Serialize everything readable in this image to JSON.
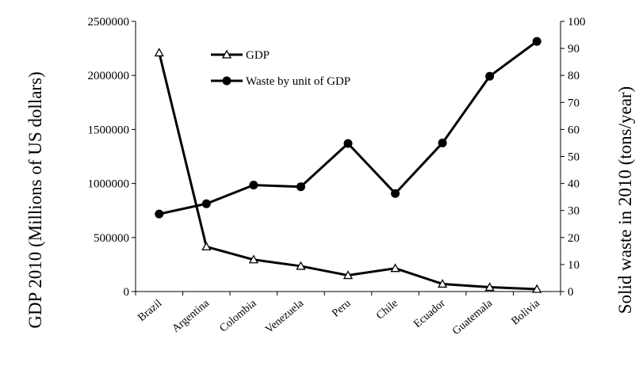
{
  "chart_data": {
    "type": "line",
    "categories": [
      "Brazil",
      "Argentina",
      "Colombia",
      "Venezuela",
      "Peru",
      "Chile",
      "Ecuador",
      "Guatemala",
      "Bolivia"
    ],
    "series": [
      {
        "name": "GDP",
        "axis": "left",
        "marker": "open-triangle",
        "values": [
          2210000,
          415000,
          295000,
          235000,
          150000,
          215000,
          70000,
          40000,
          22000
        ]
      },
      {
        "name": "Waste by unit of GDP",
        "axis": "right",
        "marker": "filled-circle",
        "values": [
          28.7,
          32.5,
          39.4,
          38.8,
          54.8,
          36.3,
          55.0,
          79.7,
          92.6
        ]
      }
    ],
    "ylabel_left": "GDP 2010 (Millions of US dollars)",
    "ylabel_right": "Solid  waste in 2010 (tons/year)",
    "ylim_left": [
      0,
      2500000
    ],
    "yticks_left": [
      "0",
      "500000",
      "1000000",
      "1500000",
      "2000000",
      "2500000"
    ],
    "ylim_right": [
      0,
      100
    ],
    "yticks_right": [
      "0",
      "10",
      "20",
      "30",
      "40",
      "50",
      "60",
      "70",
      "80",
      "90",
      "100"
    ],
    "grid": false,
    "legend_position": "top-center",
    "colors": {
      "line": "#000000",
      "background": "#ffffff"
    }
  }
}
